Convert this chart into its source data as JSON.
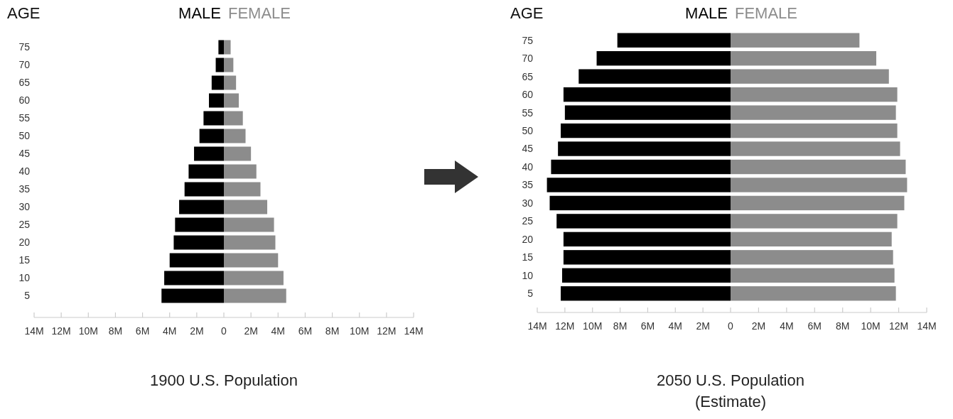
{
  "chart_data": [
    {
      "type": "bar",
      "orientation": "horizontal",
      "title": "1900 U.S. Population",
      "ylabel": "AGE",
      "legend": "top",
      "categories": [
        "75",
        "70",
        "65",
        "60",
        "55",
        "50",
        "45",
        "40",
        "35",
        "30",
        "25",
        "20",
        "15",
        "10",
        "5"
      ],
      "series": [
        {
          "name": "MALE",
          "color": "#000000",
          "values": [
            0.4,
            0.6,
            0.9,
            1.1,
            1.5,
            1.8,
            2.2,
            2.6,
            2.9,
            3.3,
            3.6,
            3.7,
            4.0,
            4.4,
            4.6
          ]
        }
      ],
      "xlim": [
        14,
        0
      ],
      "xticks": [
        {
          "value": 14,
          "label": "14M"
        },
        {
          "value": 12,
          "label": "12M"
        },
        {
          "value": 10,
          "label": "10M"
        },
        {
          "value": 8,
          "label": "8M"
        },
        {
          "value": 6,
          "label": "6M"
        },
        {
          "value": 4,
          "label": "4M"
        },
        {
          "value": 2,
          "label": "2M"
        },
        0
      ]
    },
    {
      "type": "bar",
      "orientation": "horizontal",
      "legend": "top",
      "tick_labels": "x",
      "categories": [
        "75",
        "70",
        "65",
        "60",
        "55",
        "50",
        "45",
        "40",
        "35",
        "30",
        "25",
        "20",
        "15",
        "10",
        "5"
      ],
      "series": [
        {
          "name": "FEMALE",
          "color": "#8c8c8c",
          "values": [
            0.5,
            0.7,
            0.9,
            1.1,
            1.4,
            1.6,
            2.0,
            2.4,
            2.7,
            3.2,
            3.7,
            3.8,
            4.0,
            4.4,
            4.6
          ]
        }
      ],
      "xlim": [
        0,
        14
      ],
      "xticks": [
        {
          "value": 2,
          "label": "2M"
        },
        {
          "value": 4,
          "label": "4M"
        },
        {
          "value": 6,
          "label": "6M"
        },
        {
          "value": 8,
          "label": "8M"
        },
        {
          "value": 10,
          "label": "10M"
        },
        {
          "value": 12,
          "label": "12M"
        },
        {
          "value": 14,
          "label": "14M"
        }
      ]
    },
    {
      "type": "bar",
      "orientation": "horizontal",
      "title": "2050 U.S. Population\n(Estimate)",
      "ylabel": "AGE",
      "legend": "top",
      "categories": [
        "75",
        "70",
        "65",
        "60",
        "55",
        "50",
        "45",
        "40",
        "35",
        "30",
        "25",
        "20",
        "15",
        "10",
        "5"
      ],
      "series": [
        {
          "name": "MALE",
          "color": "#000000",
          "values": [
            8.2,
            9.7,
            11.0,
            12.1,
            12.0,
            12.3,
            12.5,
            13.0,
            13.3,
            13.1,
            12.6,
            12.1,
            12.1,
            12.2,
            12.3
          ]
        }
      ],
      "xlim": [
        14,
        0
      ],
      "xticks": [
        {
          "value": 14,
          "label": "14M"
        },
        {
          "value": 12,
          "label": "12M"
        },
        {
          "value": 10,
          "label": "10M"
        },
        {
          "value": 8,
          "label": "8M"
        },
        {
          "value": 6,
          "label": "6M"
        },
        {
          "value": 4,
          "label": "4M"
        },
        {
          "value": 2,
          "label": "2M"
        },
        0
      ]
    },
    {
      "type": "bar",
      "orientation": "horizontal",
      "legend": "top",
      "tick_labels": "x",
      "categories": [
        "75",
        "70",
        "65",
        "60",
        "55",
        "50",
        "45",
        "40",
        "35",
        "30",
        "25",
        "20",
        "15",
        "10",
        "5"
      ],
      "series": [
        {
          "name": "FEMALE",
          "color": "#8c8c8c",
          "values": [
            9.2,
            10.4,
            11.3,
            11.9,
            11.8,
            11.9,
            12.1,
            12.5,
            12.6,
            12.4,
            11.9,
            11.5,
            11.6,
            11.7,
            11.8
          ]
        }
      ],
      "xlim": [
        0,
        14
      ],
      "xticks": [
        {
          "value": 2,
          "label": "2M"
        },
        {
          "value": 4,
          "label": "4M"
        },
        {
          "value": 6,
          "label": "6M"
        },
        {
          "value": 8,
          "label": "8M"
        },
        {
          "value": 10,
          "label": "10M"
        },
        {
          "value": 12,
          "label": "12M"
        },
        {
          "value": 14,
          "label": "14M"
        }
      ]
    }
  ]
}
